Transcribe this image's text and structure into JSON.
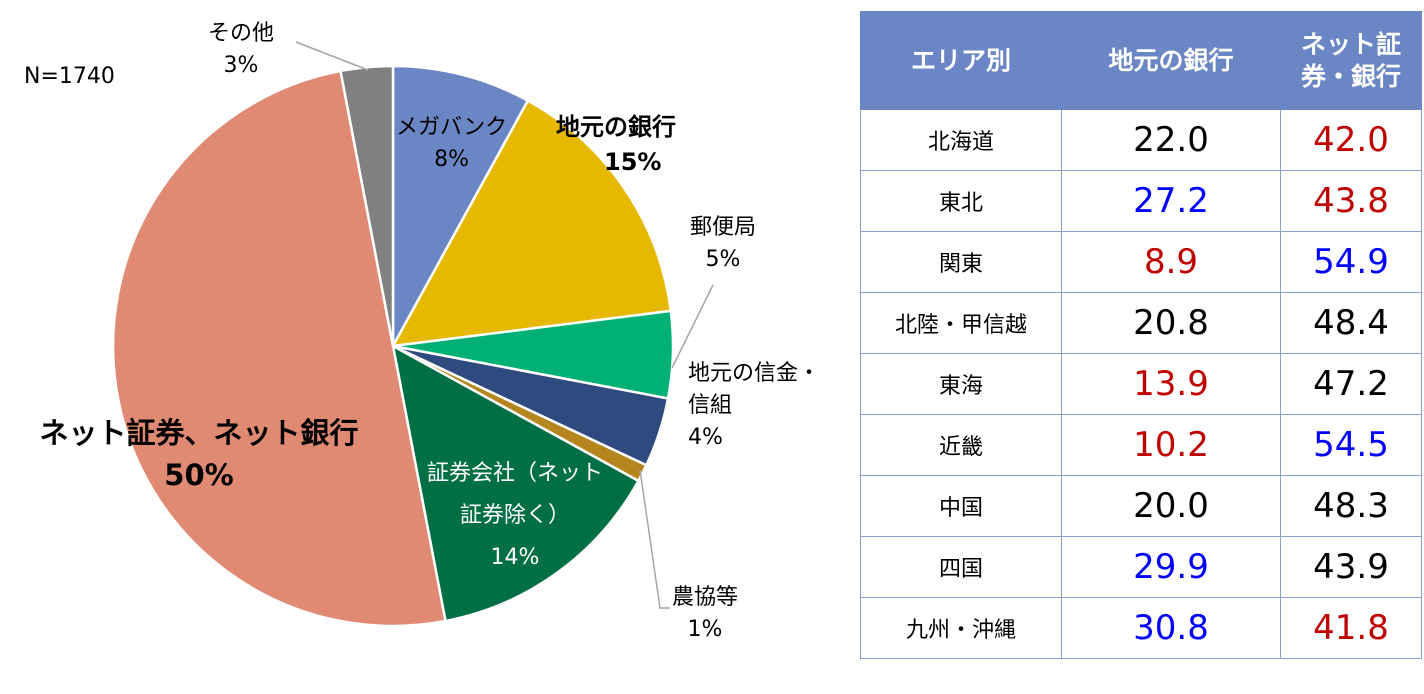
{
  "sample_label": "N=1740",
  "chart_data": [
    {
      "type": "pie",
      "start": "12 o'clock, clockwise",
      "slices": [
        {
          "label": "メガバンク",
          "value": 8,
          "pct_text": "8%",
          "color": "#6b86c4"
        },
        {
          "label": "地元の銀行",
          "value": 15,
          "pct_text": "15%",
          "color": "#e6b800",
          "bold": true
        },
        {
          "label": "郵便局",
          "value": 5,
          "pct_text": "5%",
          "color": "#00b074"
        },
        {
          "label": "地元の信金・信組",
          "value": 4,
          "pct_text": "4%",
          "color": "#2f4a7e"
        },
        {
          "label": "農協等",
          "value": 1,
          "pct_text": "1%",
          "color": "#b5861e"
        },
        {
          "label": "証券会社（ネット証券除く）",
          "value": 14,
          "pct_text": "14%",
          "color": "#006f45"
        },
        {
          "label": "ネット証券、ネット銀行",
          "value": 50,
          "pct_text": "50%",
          "color": "#e08a74",
          "bold": true
        },
        {
          "label": "その他",
          "value": 3,
          "pct_text": "3%",
          "color": "#808080"
        }
      ]
    },
    {
      "type": "table",
      "headers": [
        "エリア別",
        "地元の銀行",
        "ネット証券・銀行"
      ],
      "rows": [
        {
          "area": "北海道",
          "local": "22.0",
          "local_color": "black",
          "net": "42.0",
          "net_color": "red"
        },
        {
          "area": "東北",
          "local": "27.2",
          "local_color": "blue",
          "net": "43.8",
          "net_color": "red"
        },
        {
          "area": "関東",
          "local": "8.9",
          "local_color": "red",
          "net": "54.9",
          "net_color": "blue"
        },
        {
          "area": "北陸・甲信越",
          "local": "20.8",
          "local_color": "black",
          "net": "48.4",
          "net_color": "black"
        },
        {
          "area": "東海",
          "local": "13.9",
          "local_color": "red",
          "net": "47.2",
          "net_color": "black"
        },
        {
          "area": "近畿",
          "local": "10.2",
          "local_color": "red",
          "net": "54.5",
          "net_color": "blue"
        },
        {
          "area": "中国",
          "local": "20.0",
          "local_color": "black",
          "net": "48.3",
          "net_color": "black"
        },
        {
          "area": "四国",
          "local": "29.9",
          "local_color": "blue",
          "net": "43.9",
          "net_color": "black"
        },
        {
          "area": "九州・沖縄",
          "local": "30.8",
          "local_color": "blue",
          "net": "41.8",
          "net_color": "red"
        }
      ]
    }
  ]
}
